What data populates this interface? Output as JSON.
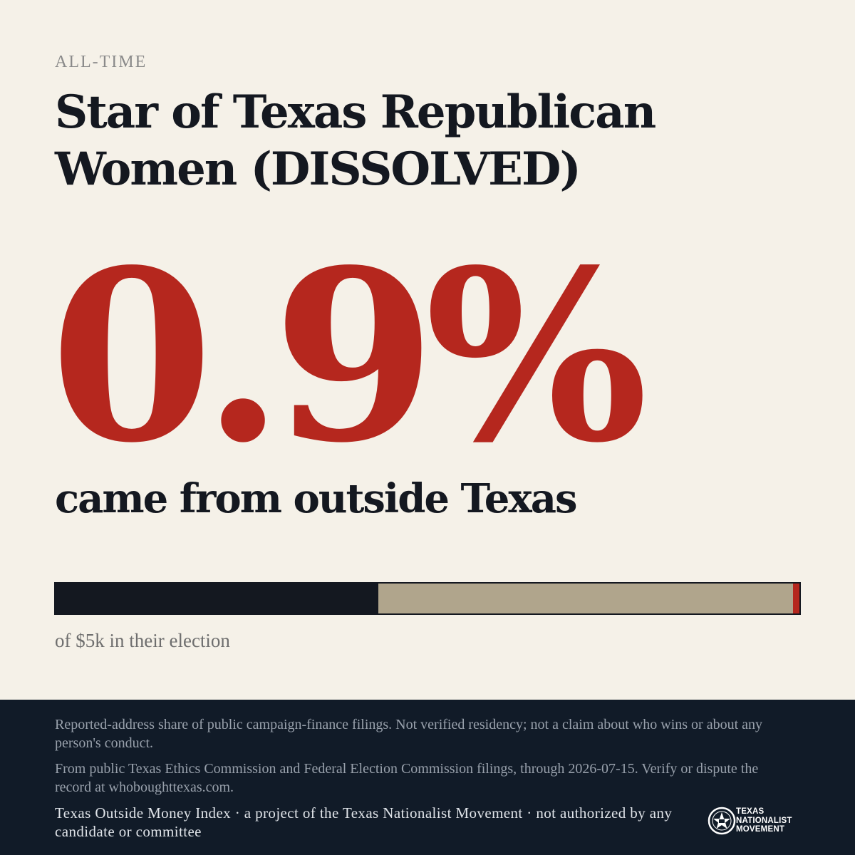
{
  "period_label": "ALL-TIME",
  "title": "Star of Texas Republican Women (DISSOLVED)",
  "stat": {
    "value": "0.9%",
    "subhead": "came from outside Texas",
    "caption": "of $5k in their election"
  },
  "bar": {
    "segments": [
      {
        "name": "segment-dark",
        "fraction": 0.434,
        "color": "#141820"
      },
      {
        "name": "segment-tan",
        "fraction": 0.557,
        "color": "#b0a58c"
      },
      {
        "name": "segment-outside-texas",
        "fraction": 0.009,
        "color": "#b5271e"
      }
    ]
  },
  "footer": {
    "disclaimer": "Reported-address share of public campaign-finance filings. Not verified residency; not a claim about who wins or about any person's conduct.",
    "source": "From public Texas Ethics Commission and Federal Election Commission filings, through 2026-07-15. Verify or dispute the record at whoboughttexas.com.",
    "credit": "Texas Outside Money Index · a project of the Texas Nationalist Movement · not authorized by any candidate or committee"
  },
  "logo": {
    "icon": "star-seal-icon",
    "lines": [
      "TEXAS",
      "NATIONALIST",
      "MOVEMENT"
    ]
  },
  "colors": {
    "background": "#f5f1e8",
    "accent": "#b5271e",
    "ink": "#141820",
    "footer": "#111b28"
  }
}
